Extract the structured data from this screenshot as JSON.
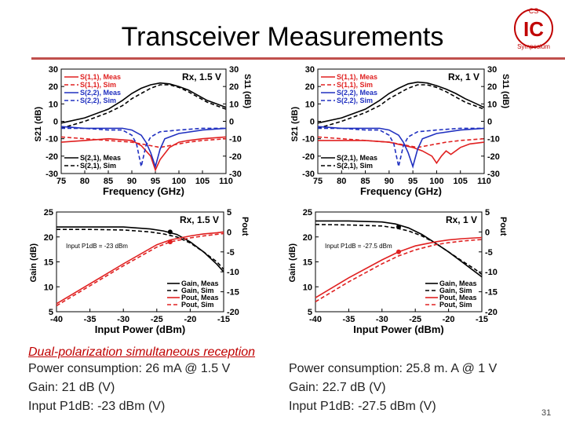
{
  "slide": {
    "title": "Transceiver Measurements",
    "page_number": "31",
    "logo": {
      "letters": "IC",
      "top_text": "CS",
      "ring_text": "Symposium",
      "color": "#c00000"
    },
    "bottom": {
      "heading": "Dual-polarization simultaneous reception",
      "left": [
        "Power consumption: 26 mA @ 1.5 V",
        "Gain: 21 dB (V)",
        "Input P1dB: -23 dBm (V)"
      ],
      "right": [
        "Power consumption: 25.8 m. A @ 1 V",
        "Gain: 22.7 dB (V)",
        "Input P1dB: -27.5 dBm (V)"
      ]
    }
  },
  "chart_data": [
    {
      "type": "line",
      "title": "Rx, 1.5 V",
      "xlabel": "Frequency (GHz)",
      "ylabel": "S21 (dB)",
      "y2label": "S11 (dB)",
      "xlim": [
        75,
        110
      ],
      "ylim": [
        -30,
        30
      ],
      "xticks": [
        "75",
        "80",
        "85",
        "90",
        "95",
        "100",
        "105",
        "110"
      ],
      "yticks": [
        "30",
        "20",
        "10",
        "0",
        "-10",
        "-20",
        "-30"
      ],
      "legend_top": [
        "S(1,1), Meas",
        "S(1,1), Sim",
        "S(2,2), Meas",
        "S(2,2), Sim"
      ],
      "legend_bottom": [
        "S(2,1), Meas",
        "S(2,1), Sim"
      ],
      "series": [
        {
          "name": "S(2,1), Meas",
          "color": "#000000",
          "dash": "solid",
          "x": [
            75,
            80,
            85,
            88,
            90,
            92,
            94,
            96,
            98,
            100,
            102,
            104,
            106,
            108,
            110
          ],
          "y": [
            -1,
            2,
            7,
            12,
            16,
            19,
            21,
            22,
            21.5,
            20,
            18,
            15,
            12,
            10,
            8
          ]
        },
        {
          "name": "S(2,1), Sim",
          "color": "#000000",
          "dash": "dash",
          "x": [
            75,
            80,
            85,
            88,
            90,
            92,
            94,
            96,
            98,
            100,
            102,
            104,
            106,
            108,
            110
          ],
          "y": [
            -4,
            0,
            5,
            9,
            13,
            16,
            19,
            21,
            21,
            19.5,
            17,
            14,
            11,
            9,
            7
          ]
        },
        {
          "name": "S(1,1), Meas",
          "color": "#e02020",
          "dash": "solid",
          "x": [
            75,
            80,
            85,
            90,
            92,
            94,
            95,
            96,
            98,
            100,
            102,
            105,
            110
          ],
          "y": [
            -12,
            -11,
            -10,
            -11,
            -14,
            -20,
            -28,
            -22,
            -15,
            -12,
            -11,
            -10,
            -9
          ]
        },
        {
          "name": "S(1,1), Sim",
          "color": "#e02020",
          "dash": "dash",
          "x": [
            75,
            80,
            85,
            90,
            92,
            94,
            96,
            98,
            100,
            102,
            105,
            110
          ],
          "y": [
            -9,
            -10,
            -11,
            -12,
            -13,
            -14,
            -15,
            -14,
            -13,
            -12,
            -11,
            -10
          ]
        },
        {
          "name": "S(2,2), Meas",
          "color": "#2030c0",
          "dash": "solid",
          "x": [
            75,
            80,
            85,
            88,
            90,
            92,
            93,
            94,
            95,
            96,
            97,
            100,
            105,
            110
          ],
          "y": [
            -3,
            -4,
            -4,
            -4,
            -5,
            -8,
            -12,
            -18,
            -26,
            -16,
            -10,
            -7,
            -5,
            -4
          ]
        },
        {
          "name": "S(2,2), Sim",
          "color": "#2030c0",
          "dash": "dash",
          "x": [
            75,
            80,
            85,
            88,
            90,
            91,
            92,
            93,
            94,
            96,
            100,
            105,
            110
          ],
          "y": [
            -4,
            -4,
            -5,
            -5,
            -8,
            -13,
            -26,
            -14,
            -9,
            -6,
            -5,
            -4,
            -4
          ]
        }
      ]
    },
    {
      "type": "line",
      "title": "Rx, 1 V",
      "xlabel": "Frequency (GHz)",
      "ylabel": "S21 (dB)",
      "y2label": "S11 (dB)",
      "xlim": [
        75,
        110
      ],
      "ylim": [
        -30,
        30
      ],
      "xticks": [
        "75",
        "80",
        "85",
        "90",
        "95",
        "100",
        "105",
        "110"
      ],
      "yticks": [
        "30",
        "20",
        "10",
        "0",
        "-10",
        "-20",
        "-30"
      ],
      "legend_top": [
        "S(1,1), Meas",
        "S(1,1), Sim",
        "S(2,2), Meas",
        "S(2,2), Sim"
      ],
      "legend_bottom": [
        "S(2,1), Meas",
        "S(2,1), Sim"
      ],
      "series": [
        {
          "name": "S(2,1), Meas",
          "color": "#000000",
          "dash": "solid",
          "x": [
            75,
            80,
            85,
            88,
            90,
            92,
            94,
            96,
            98,
            100,
            102,
            104,
            106,
            108,
            110
          ],
          "y": [
            -1,
            2,
            7,
            12,
            16,
            19,
            21.5,
            22.5,
            22,
            20.5,
            18.5,
            16,
            13,
            10.5,
            8
          ]
        },
        {
          "name": "S(2,1), Sim",
          "color": "#000000",
          "dash": "dash",
          "x": [
            75,
            80,
            85,
            88,
            90,
            92,
            94,
            96,
            98,
            100,
            102,
            104,
            106,
            108,
            110
          ],
          "y": [
            -4,
            0,
            5,
            9,
            13,
            16,
            19,
            21,
            21,
            19.5,
            17,
            14,
            11,
            9,
            7
          ]
        },
        {
          "name": "S(1,1), Meas",
          "color": "#e02020",
          "dash": "solid",
          "x": [
            75,
            80,
            85,
            90,
            95,
            97,
            99,
            100,
            101,
            102,
            103,
            105,
            107,
            110
          ],
          "y": [
            -11,
            -11,
            -11,
            -12,
            -15,
            -17,
            -20,
            -24,
            -20,
            -17,
            -19,
            -15,
            -13,
            -12
          ]
        },
        {
          "name": "S(1,1), Sim",
          "color": "#e02020",
          "dash": "dash",
          "x": [
            75,
            80,
            85,
            90,
            92,
            94,
            96,
            98,
            100,
            102,
            105,
            110
          ],
          "y": [
            -9,
            -10,
            -11,
            -12,
            -13,
            -14,
            -15,
            -14,
            -13,
            -12,
            -11,
            -10
          ]
        },
        {
          "name": "S(2,2), Meas",
          "color": "#2030c0",
          "dash": "solid",
          "x": [
            75,
            80,
            85,
            88,
            90,
            92,
            93,
            94,
            95,
            96,
            97,
            100,
            105,
            110
          ],
          "y": [
            -3,
            -4,
            -4,
            -4,
            -5,
            -8,
            -12,
            -18,
            -26,
            -16,
            -10,
            -7,
            -5,
            -4
          ]
        },
        {
          "name": "S(2,2), Sim",
          "color": "#2030c0",
          "dash": "dash",
          "x": [
            75,
            80,
            85,
            88,
            90,
            91,
            92,
            93,
            94,
            96,
            100,
            105,
            110
          ],
          "y": [
            -4,
            -4,
            -5,
            -5,
            -8,
            -13,
            -26,
            -14,
            -9,
            -6,
            -5,
            -4,
            -4
          ]
        }
      ]
    },
    {
      "type": "line",
      "title": "Rx, 1.5 V",
      "annotation": "Input P1dB = -23 dBm",
      "xlabel": "Input Power (dBm)",
      "ylabel": "Gain (dB)",
      "y2label": "Pout",
      "xlim": [
        -40,
        -15
      ],
      "ylim": [
        5,
        25
      ],
      "y2lim": [
        -20,
        5
      ],
      "xticks": [
        "-40",
        "-35",
        "-30",
        "-25",
        "-20",
        "-15"
      ],
      "yticks": [
        "25",
        "20",
        "15",
        "10",
        "5"
      ],
      "y2ticks": [
        "5",
        "0",
        "-5",
        "-10",
        "-15",
        "-20"
      ],
      "legend": [
        "Gain, Meas",
        "Gain, Sim",
        "Pout, Meas",
        "Pout, Sim"
      ],
      "markers": [
        {
          "x": -23,
          "y": 21,
          "axis": "left",
          "color": "#000000"
        },
        {
          "x": -23,
          "y": -2.5,
          "axis": "right",
          "color": "#e02020"
        }
      ],
      "series": [
        {
          "name": "Gain, Meas",
          "axis": "left",
          "color": "#000000",
          "dash": "solid",
          "x": [
            -40,
            -35,
            -30,
            -28,
            -26,
            -24,
            -22,
            -20,
            -18,
            -16,
            -15
          ],
          "y": [
            22,
            22,
            22,
            21.8,
            21.6,
            21.2,
            20.5,
            19,
            17,
            14.5,
            13
          ]
        },
        {
          "name": "Gain, Sim",
          "axis": "left",
          "color": "#000000",
          "dash": "dash",
          "x": [
            -40,
            -35,
            -30,
            -28,
            -26,
            -24,
            -22,
            -20,
            -18,
            -16,
            -15
          ],
          "y": [
            21.5,
            21.5,
            21.4,
            21.2,
            21,
            20.6,
            20,
            18.8,
            17,
            15,
            13.5
          ]
        },
        {
          "name": "Pout, Meas",
          "axis": "right",
          "color": "#e02020",
          "dash": "solid",
          "x": [
            -40,
            -35,
            -30,
            -25,
            -23,
            -20,
            -18,
            -16,
            -15
          ],
          "y": [
            -18,
            -13,
            -8,
            -3.2,
            -2,
            -1,
            -0.5,
            -0.2,
            0
          ]
        },
        {
          "name": "Pout, Sim",
          "axis": "right",
          "color": "#e02020",
          "dash": "dash",
          "x": [
            -40,
            -35,
            -30,
            -25,
            -23,
            -20,
            -18,
            -16,
            -15
          ],
          "y": [
            -18.5,
            -13.5,
            -8.5,
            -3.8,
            -2.5,
            -1.5,
            -1,
            -0.6,
            -0.4
          ]
        }
      ]
    },
    {
      "type": "line",
      "title": "Rx, 1 V",
      "annotation": "Input P1dB = -27.5 dBm",
      "xlabel": "Input Power (dBm)",
      "ylabel": "Gain (dB)",
      "y2label": "Pout",
      "xlim": [
        -40,
        -15
      ],
      "ylim": [
        5,
        25
      ],
      "y2lim": [
        -20,
        5
      ],
      "xticks": [
        "-40",
        "-35",
        "-30",
        "-25",
        "-20",
        "-15"
      ],
      "yticks": [
        "25",
        "20",
        "15",
        "10",
        "5"
      ],
      "y2ticks": [
        "5",
        "0",
        "-5",
        "-10",
        "-15",
        "-20"
      ],
      "legend": [
        "Gain, Meas",
        "Gain, Sim",
        "Pout, Meas",
        "Pout, Sim"
      ],
      "markers": [
        {
          "x": -27.5,
          "y": 22,
          "axis": "left",
          "color": "#000000"
        },
        {
          "x": -27.5,
          "y": -5,
          "axis": "right",
          "color": "#e02020"
        }
      ],
      "series": [
        {
          "name": "Gain, Meas",
          "axis": "left",
          "color": "#000000",
          "dash": "solid",
          "x": [
            -40,
            -35,
            -30,
            -28,
            -26,
            -24,
            -22,
            -20,
            -18,
            -16,
            -15
          ],
          "y": [
            23.2,
            23.2,
            23,
            22.6,
            21.8,
            20.5,
            18.8,
            17,
            15,
            13,
            12
          ]
        },
        {
          "name": "Gain, Sim",
          "axis": "left",
          "color": "#000000",
          "dash": "dash",
          "x": [
            -40,
            -35,
            -30,
            -28,
            -26,
            -24,
            -22,
            -20,
            -18,
            -16,
            -15
          ],
          "y": [
            22.5,
            22.4,
            22.2,
            21.8,
            21.2,
            20.2,
            18.8,
            17,
            15.2,
            13.5,
            12.5
          ]
        },
        {
          "name": "Pout, Meas",
          "axis": "right",
          "color": "#e02020",
          "dash": "solid",
          "x": [
            -40,
            -35,
            -30,
            -27.5,
            -25,
            -22,
            -20,
            -18,
            -16,
            -15
          ],
          "y": [
            -16.5,
            -11.5,
            -7,
            -5,
            -3.5,
            -2.5,
            -2,
            -1.7,
            -1.5,
            -1.4
          ]
        },
        {
          "name": "Pout, Sim",
          "axis": "right",
          "color": "#e02020",
          "dash": "dash",
          "x": [
            -40,
            -35,
            -30,
            -27.5,
            -25,
            -22,
            -20,
            -18,
            -16,
            -15
          ],
          "y": [
            -17.5,
            -12.5,
            -8,
            -6,
            -4.5,
            -3.2,
            -2.7,
            -2.3,
            -2,
            -1.9
          ]
        }
      ]
    }
  ]
}
